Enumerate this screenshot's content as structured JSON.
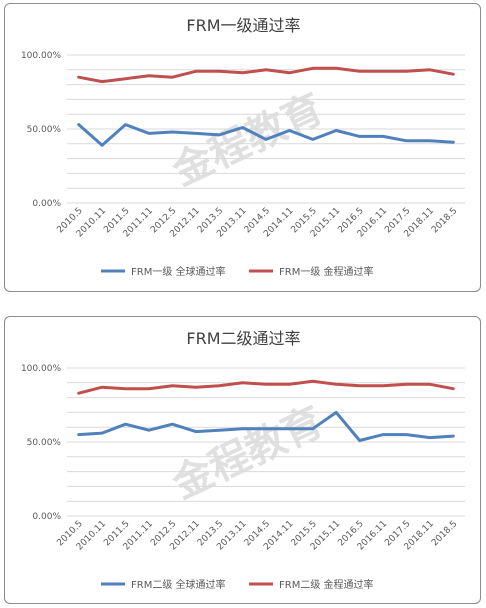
{
  "watermark": "金程教育",
  "charts": [
    {
      "type": "line",
      "title": "FRM一级通过率",
      "categories": [
        "2010.5",
        "2010.11",
        "2011.5",
        "2011.11",
        "2012.5",
        "2012.11",
        "2013.5",
        "2013.11",
        "2014.5",
        "2014.11",
        "2015.5",
        "2015.11",
        "2016.5",
        "2016.11",
        "2017.5",
        "2018.11",
        "2018.5"
      ],
      "y_ticks": [
        "0.00%",
        "50.00%",
        "100.00%"
      ],
      "ylim": [
        0,
        100
      ],
      "series": [
        {
          "name": "FRM一级 全球通过率",
          "color": "#4f81bd",
          "values": [
            53,
            39,
            53,
            47,
            48,
            47,
            46,
            51,
            43,
            49,
            43,
            49,
            45,
            45,
            42,
            42,
            41
          ]
        },
        {
          "name": "FRM一级 金程通过率",
          "color": "#c0504d",
          "values": [
            85,
            82,
            84,
            86,
            85,
            89,
            89,
            88,
            90,
            88,
            91,
            91,
            89,
            89,
            89,
            90,
            87
          ]
        }
      ]
    },
    {
      "type": "line",
      "title": "FRM二级通过率",
      "categories": [
        "2010.5",
        "2010.11",
        "2011.5",
        "2011.11",
        "2012.5",
        "2012.11",
        "2013.5",
        "2013.11",
        "2014.5",
        "2014.11",
        "2015.5",
        "2015.11",
        "2016.5",
        "2016.11",
        "2017.5",
        "2018.11",
        "2018.5"
      ],
      "y_ticks": [
        "0.00%",
        "50.00%",
        "100.00%"
      ],
      "ylim": [
        0,
        100
      ],
      "series": [
        {
          "name": "FRM二级 全球通过率",
          "color": "#4f81bd",
          "values": [
            55,
            56,
            62,
            58,
            62,
            57,
            58,
            59,
            59,
            59,
            59,
            70,
            51,
            55,
            55,
            53,
            54
          ]
        },
        {
          "name": "FRM二级 金程通过率",
          "color": "#c0504d",
          "values": [
            83,
            87,
            86,
            86,
            88,
            87,
            88,
            90,
            89,
            89,
            91,
            89,
            88,
            88,
            89,
            89,
            86
          ]
        }
      ]
    }
  ]
}
